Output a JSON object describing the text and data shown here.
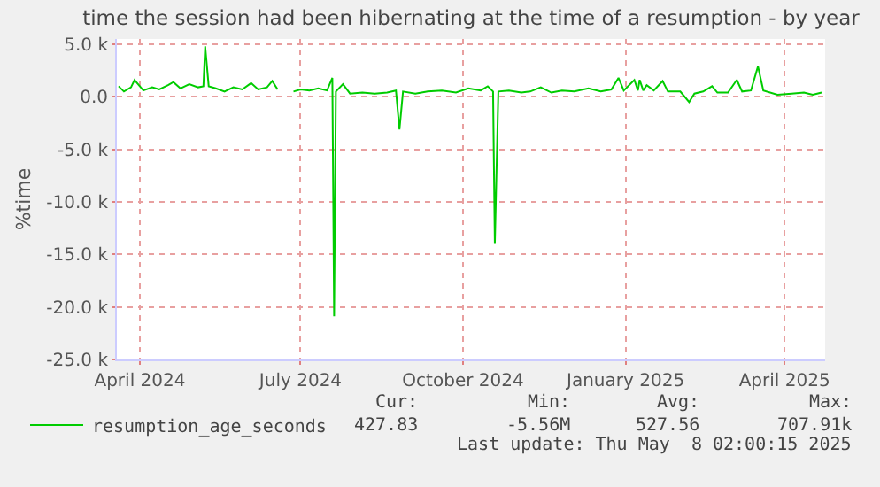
{
  "chart_data": {
    "type": "line",
    "title": "time the session had been hibernating at the time of a resumption - by year",
    "ylabel": "%time",
    "x": [
      "2024-03-20",
      "2024-03-23",
      "2024-03-27",
      "2024-03-29",
      "2024-04-03",
      "2024-04-08",
      "2024-04-12",
      "2024-04-17",
      "2024-04-20",
      "2024-04-24",
      "2024-04-29",
      "2024-05-04",
      "2024-05-07",
      "2024-05-08",
      "2024-05-10",
      "2024-05-14",
      "2024-05-19",
      "2024-05-24",
      "2024-05-29",
      "2024-06-03",
      "2024-06-07",
      "2024-06-12",
      "2024-06-15",
      "2024-06-18",
      "2024-06-22",
      "2024-06-27",
      "2024-07-01",
      "2024-07-06",
      "2024-07-11",
      "2024-07-16",
      "2024-07-19",
      "2024-07-20",
      "2024-07-21",
      "2024-07-25",
      "2024-07-29",
      "2024-08-05",
      "2024-08-12",
      "2024-08-19",
      "2024-08-24",
      "2024-08-26",
      "2024-08-28",
      "2024-09-04",
      "2024-09-11",
      "2024-09-19",
      "2024-09-27",
      "2024-10-04",
      "2024-10-11",
      "2024-10-15",
      "2024-10-18",
      "2024-10-19",
      "2024-10-21",
      "2024-10-27",
      "2024-11-03",
      "2024-11-08",
      "2024-11-14",
      "2024-11-20",
      "2024-11-26",
      "2024-12-03",
      "2024-12-11",
      "2024-12-18",
      "2024-12-24",
      "2024-12-28",
      "2024-12-31",
      "2025-01-06",
      "2025-01-08",
      "2025-01-09",
      "2025-01-11",
      "2025-01-13",
      "2025-01-17",
      "2025-01-22",
      "2025-01-25",
      "2025-02-01",
      "2025-02-06",
      "2025-02-09",
      "2025-02-14",
      "2025-02-19",
      "2025-02-22",
      "2025-02-28",
      "2025-03-05",
      "2025-03-08",
      "2025-03-13",
      "2025-03-17",
      "2025-03-20",
      "2025-03-28",
      "2025-04-05",
      "2025-04-12",
      "2025-04-17",
      "2025-04-22"
    ],
    "series": [
      {
        "name": "resumption_age_seconds",
        "color": "#00cc00",
        "values": [
          1000,
          500,
          900,
          1600,
          600,
          900,
          700,
          1100,
          1400,
          800,
          1200,
          900,
          1000,
          4800,
          1000,
          800,
          500,
          900,
          700,
          1300,
          700,
          900,
          1500,
          700,
          null,
          500,
          700,
          600,
          800,
          600,
          1800,
          -20900,
          500,
          1200,
          300,
          400,
          300,
          400,
          600,
          -3100,
          500,
          300,
          500,
          600,
          400,
          800,
          600,
          1000,
          500,
          -14000,
          500,
          600,
          400,
          500,
          900,
          400,
          600,
          500,
          800,
          500,
          700,
          1800,
          600,
          1600,
          600,
          1600,
          600,
          1100,
          600,
          1500,
          500,
          500,
          -500,
          300,
          500,
          1000,
          400,
          400,
          1600,
          500,
          600,
          2900,
          600,
          200,
          300,
          400,
          200,
          400
        ]
      }
    ],
    "xlim": [
      "2024-03-19",
      "2025-04-24"
    ],
    "xticks": [
      {
        "value": "2024-04-01",
        "label": "April 2024"
      },
      {
        "value": "2024-07-01",
        "label": "July 2024"
      },
      {
        "value": "2024-10-01",
        "label": "October 2024"
      },
      {
        "value": "2025-01-01",
        "label": "January 2025"
      },
      {
        "value": "2025-04-01",
        "label": "April 2025"
      }
    ],
    "ylim": [
      -25000,
      5500
    ],
    "yticks": [
      {
        "value": 5000,
        "label": "5.0 k"
      },
      {
        "value": 0,
        "label": "0.0"
      },
      {
        "value": -5000,
        "label": "-5.0 k"
      },
      {
        "value": -10000,
        "label": "-10.0 k"
      },
      {
        "value": -15000,
        "label": "-15.0 k"
      },
      {
        "value": -20000,
        "label": "-20.0 k"
      },
      {
        "value": -25000,
        "label": "-25.0 k"
      }
    ],
    "grid": true,
    "legend": "bottom left",
    "marker": "none",
    "line_style": "solid",
    "annotations": [
      "Cur:",
      "Min:",
      "Avg:",
      "Max:",
      "427.83",
      "-5.56M",
      "527.56",
      "707.91k",
      "Last update: Thu May  8 02:00:15 2025"
    ]
  }
}
